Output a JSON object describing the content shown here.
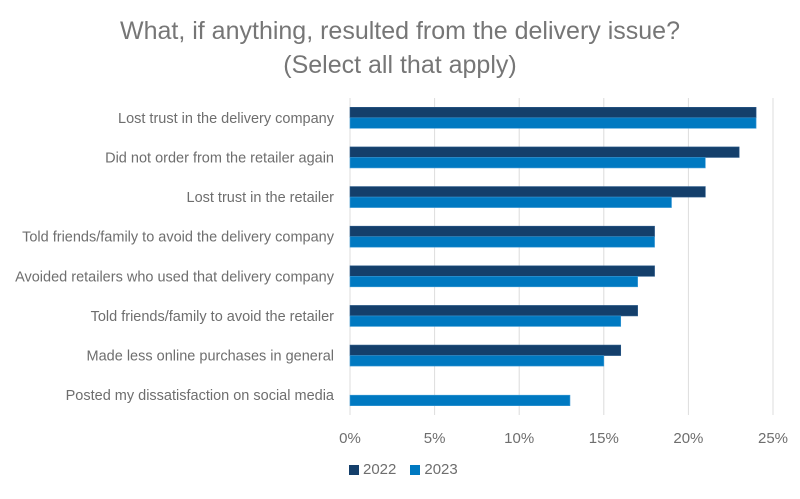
{
  "chart_data": {
    "type": "bar",
    "orientation": "horizontal",
    "title": "What, if anything, resulted from the delivery issue?",
    "subtitle": "(Select all that apply)",
    "xlabel": "",
    "ylabel": "",
    "xlim": [
      0,
      25
    ],
    "x_ticks": [
      "0%",
      "5%",
      "10%",
      "15%",
      "20%",
      "25%"
    ],
    "x_tick_values": [
      0,
      5,
      10,
      15,
      20,
      25
    ],
    "grid": true,
    "legend_position": "bottom",
    "categories": [
      "Lost trust in the delivery company",
      "Did not order from the retailer again",
      "Lost trust in the retailer",
      "Told friends/family to avoid the delivery company",
      "Avoided retailers who used that delivery company",
      "Told friends/family to avoid the retailer",
      "Made less online purchases in general",
      "Posted my  dissatisfaction on social media"
    ],
    "series": [
      {
        "name": "2022",
        "color": "#143F6B",
        "values": [
          24,
          23,
          21,
          18,
          18,
          17,
          16,
          0
        ]
      },
      {
        "name": "2023",
        "color": "#0079C1",
        "values": [
          24,
          21,
          19,
          18,
          17,
          16,
          15,
          13
        ]
      }
    ],
    "unit": "%"
  }
}
